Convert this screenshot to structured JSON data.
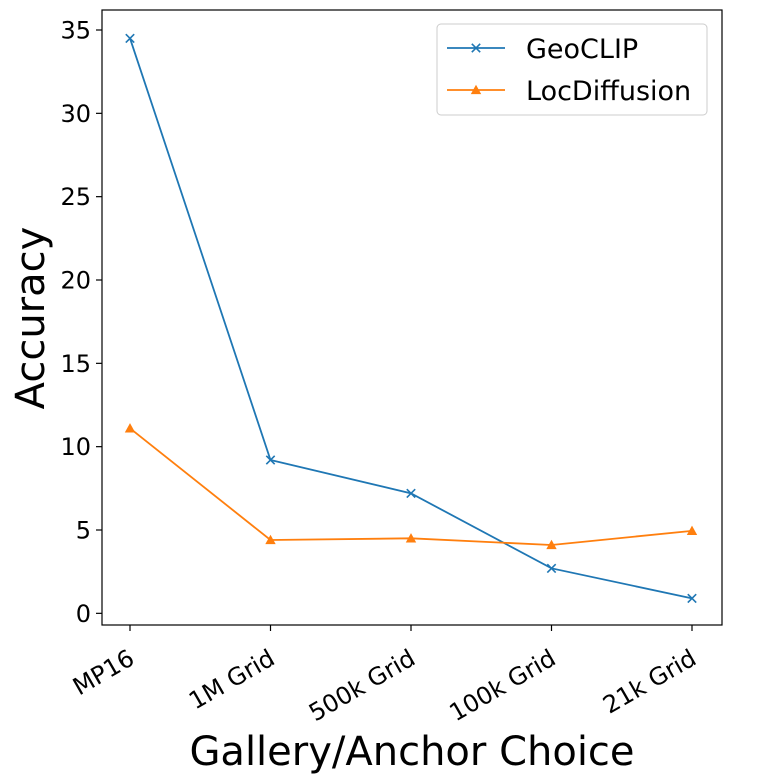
{
  "chart_data": {
    "type": "line",
    "categories": [
      "MP16",
      "1M Grid",
      "500k Grid",
      "100k Grid",
      "21k Grid"
    ],
    "series": [
      {
        "name": "GeoCLIP",
        "values": [
          34.5,
          9.2,
          7.2,
          2.7,
          0.9
        ],
        "color": "#1f77b4",
        "marker": "x"
      },
      {
        "name": "LocDiffusion",
        "values": [
          11.1,
          4.4,
          4.5,
          4.1,
          4.95
        ],
        "color": "#ff7f0e",
        "marker": "triangle"
      }
    ],
    "xlabel": "Gallery/Anchor Choice",
    "ylabel": "Accuracy",
    "ylim": [
      -0.7,
      36.2
    ],
    "yticks": [
      0,
      5,
      10,
      15,
      20,
      25,
      30,
      35
    ],
    "grid": false,
    "legend": "top-right"
  }
}
